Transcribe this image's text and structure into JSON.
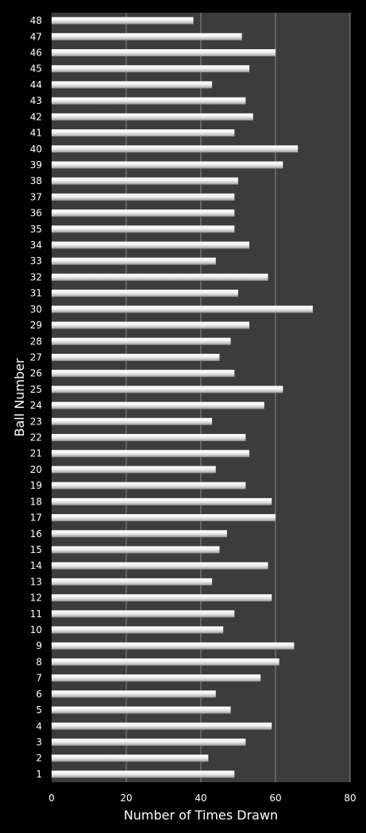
{
  "chart_data": {
    "type": "bar",
    "orientation": "horizontal",
    "xlabel": "Number of Times Drawn",
    "ylabel": "Ball Number",
    "xlim": [
      0,
      80
    ],
    "xticks": [
      "0",
      "20",
      "40",
      "60",
      "80"
    ],
    "grid": true,
    "colors": {
      "background": "#000000",
      "plot_area": "#3c3c3c",
      "gridline": "#8a8a8a",
      "bar": "#e6e6e6",
      "text": "#ffffff"
    },
    "categories": [
      "1",
      "2",
      "3",
      "4",
      "5",
      "6",
      "7",
      "8",
      "9",
      "10",
      "11",
      "12",
      "13",
      "14",
      "15",
      "16",
      "17",
      "18",
      "19",
      "20",
      "21",
      "22",
      "23",
      "24",
      "25",
      "26",
      "27",
      "28",
      "29",
      "30",
      "31",
      "32",
      "33",
      "34",
      "35",
      "36",
      "37",
      "38",
      "39",
      "40",
      "41",
      "42",
      "43",
      "44",
      "45",
      "46",
      "47",
      "48"
    ],
    "values": [
      49,
      42,
      52,
      59,
      48,
      44,
      56,
      61,
      65,
      46,
      49,
      59,
      43,
      58,
      45,
      47,
      60,
      59,
      52,
      44,
      53,
      52,
      43,
      57,
      62,
      49,
      45,
      48,
      53,
      70,
      50,
      58,
      44,
      53,
      49,
      49,
      49,
      50,
      62,
      66,
      49,
      54,
      52,
      43,
      53,
      60,
      51,
      38
    ]
  }
}
